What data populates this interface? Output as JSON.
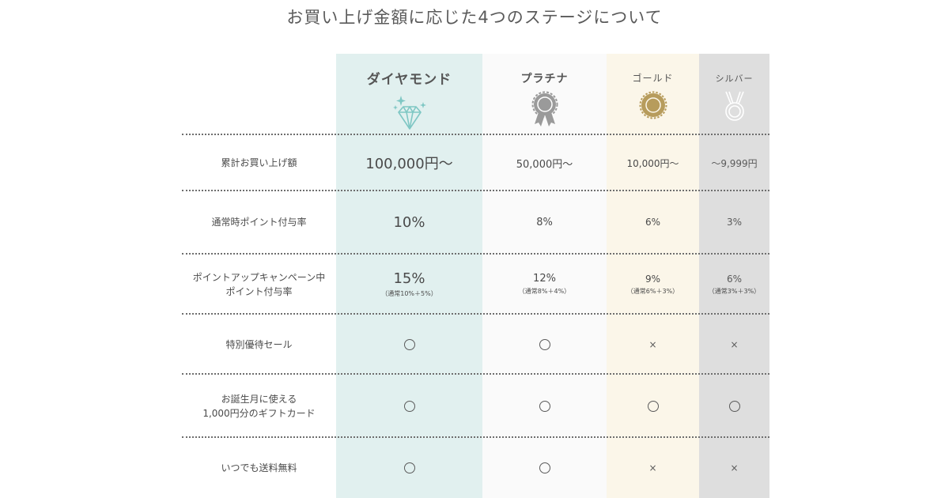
{
  "title": "お買い上げ金額に応じた4つのステージについて",
  "tiers": [
    {
      "key": "diamond",
      "name": "ダイヤモンド",
      "icon": "diamond-icon",
      "color": "#7fc7c4"
    },
    {
      "key": "platinum",
      "name": "プラチナ",
      "icon": "platinum-rosette-icon",
      "color": "#9a9a9a"
    },
    {
      "key": "gold",
      "name": "ゴールド",
      "icon": "gold-medal-icon",
      "color": "#b79c5c"
    },
    {
      "key": "silver",
      "name": "シルバー",
      "icon": "silver-medal-icon",
      "color": "#ffffff"
    }
  ],
  "rows": [
    {
      "label": "累計お買い上げ額",
      "values": {
        "diamond": "100,000円〜",
        "platinum": "50,000円〜",
        "gold": "10,000円〜",
        "silver": "〜9,999円"
      }
    },
    {
      "label": "通常時ポイント付与率",
      "values": {
        "diamond": "10%",
        "platinum": "8%",
        "gold": "6%",
        "silver": "3%"
      }
    },
    {
      "label_line1": "ポイントアップキャンペーン中",
      "label_line2": "ポイント付与率",
      "values": {
        "diamond": "15%",
        "platinum": "12%",
        "gold": "9%",
        "silver": "6%"
      },
      "notes": {
        "diamond": "（通常10%＋5%）",
        "platinum": "（通常8%＋4%）",
        "gold": "（通常6%＋3%）",
        "silver": "（通常3%＋3%）"
      }
    },
    {
      "label": "特別優待セール",
      "values": {
        "diamond": "circle",
        "platinum": "circle",
        "gold": "cross",
        "silver": "cross"
      },
      "cross_text": "×"
    },
    {
      "label_line1": "お誕生月に使える",
      "label_line2": "1,000円分のギフトカード",
      "values": {
        "diamond": "circle",
        "platinum": "circle",
        "gold": "circle",
        "silver": "circle"
      }
    },
    {
      "label": "いつでも送料無料",
      "values": {
        "diamond": "circle",
        "platinum": "circle",
        "gold": "cross",
        "silver": "cross"
      },
      "cross_text": "×"
    }
  ]
}
